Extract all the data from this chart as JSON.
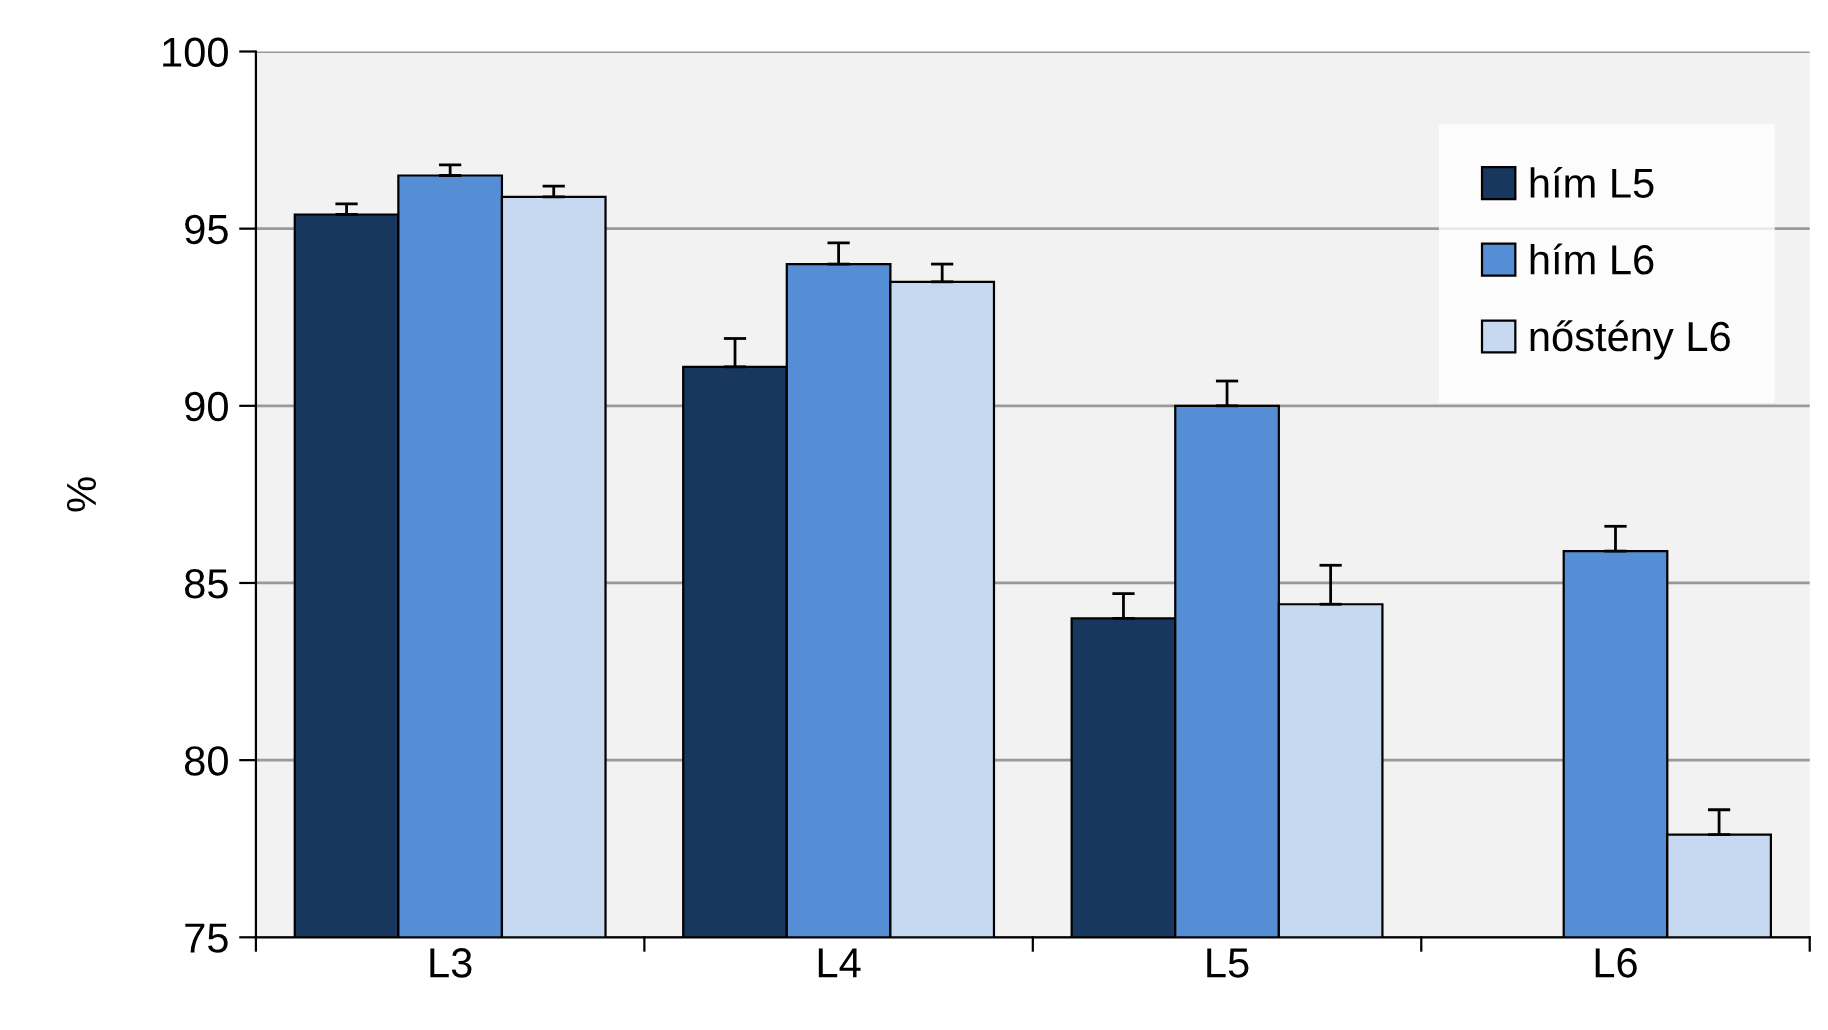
{
  "chart_data": {
    "type": "bar",
    "ylabel": "%",
    "categories": [
      "L3",
      "L4",
      "L5",
      "L6"
    ],
    "series": [
      {
        "name": "hím L5",
        "color": "#17375e",
        "values": [
          95.4,
          91.1,
          84.0,
          null
        ],
        "errors": [
          [
            95.4,
            95.7
          ],
          [
            91.1,
            91.9
          ],
          [
            84.0,
            84.7
          ],
          null
        ]
      },
      {
        "name": "hím L6",
        "color": "#558ed5",
        "values": [
          96.5,
          94.0,
          90.0,
          85.9
        ],
        "errors": [
          [
            96.5,
            96.8
          ],
          [
            94.0,
            94.6
          ],
          [
            90.0,
            90.7
          ],
          [
            85.9,
            86.6
          ]
        ]
      },
      {
        "name": "nőstény L6",
        "color": "#c6d9f1",
        "values": [
          95.9,
          93.5,
          84.4,
          77.9
        ],
        "errors": [
          [
            95.9,
            96.2
          ],
          [
            93.5,
            94.0
          ],
          [
            84.4,
            85.5
          ],
          [
            77.9,
            78.6
          ]
        ]
      }
    ],
    "ylim": [
      75,
      100
    ],
    "yticks": [
      75,
      80,
      85,
      90,
      95,
      100
    ],
    "grid": "y",
    "legend": "top right"
  }
}
